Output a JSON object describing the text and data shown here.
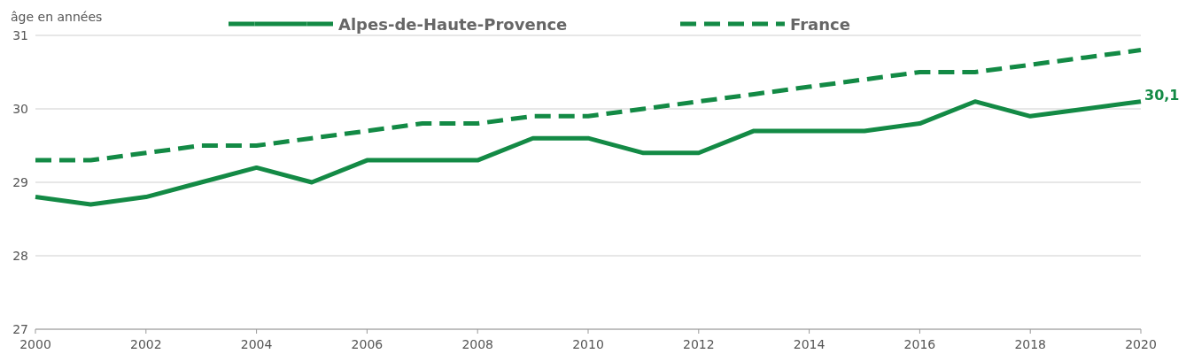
{
  "chart_data": {
    "type": "line",
    "ylabel": "âge en années",
    "x": [
      2000,
      2001,
      2002,
      2003,
      2004,
      2005,
      2006,
      2007,
      2008,
      2009,
      2010,
      2011,
      2012,
      2013,
      2014,
      2015,
      2016,
      2017,
      2018,
      2019,
      2020
    ],
    "series": [
      {
        "name": "Alpes-de-Haute-Provence",
        "color": "#138a45",
        "line_style": "solid",
        "values": [
          28.8,
          28.7,
          28.8,
          29.0,
          29.2,
          29.0,
          29.3,
          29.3,
          29.3,
          29.6,
          29.6,
          29.4,
          29.4,
          29.7,
          29.7,
          29.7,
          29.8,
          30.1,
          29.9,
          30.0,
          30.1
        ]
      },
      {
        "name": "France",
        "color": "#138a45",
        "line_style": "dashed",
        "values": [
          29.3,
          29.3,
          29.4,
          29.5,
          29.5,
          29.6,
          29.7,
          29.8,
          29.8,
          29.9,
          29.9,
          30.0,
          30.1,
          30.2,
          30.3,
          30.4,
          30.5,
          30.5,
          30.6,
          30.7,
          30.8
        ]
      }
    ],
    "xlim": [
      2000,
      2020
    ],
    "xticks": [
      2000,
      2002,
      2004,
      2006,
      2008,
      2010,
      2012,
      2014,
      2016,
      2018,
      2020
    ],
    "ylim": [
      27,
      31
    ],
    "yticks": [
      27,
      28,
      29,
      30,
      31
    ],
    "grid": "y",
    "legend": "top",
    "annotations": [
      {
        "text": "30,1",
        "x": 2020,
        "y": 30.1
      }
    ]
  }
}
